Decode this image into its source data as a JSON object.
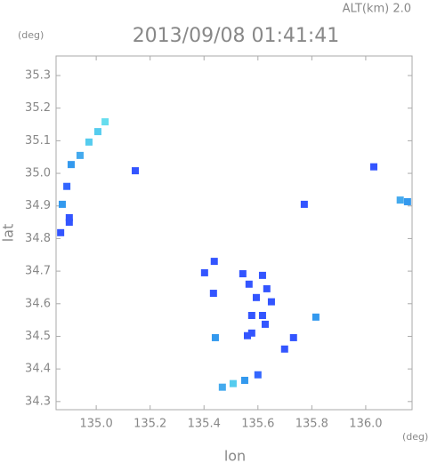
{
  "chart_data": {
    "type": "scatter",
    "title": "2013/09/08 01:41:41",
    "subtitle": "ALT(km) 2.0",
    "x_label": "lon",
    "y_label": "lat",
    "x_unit": "(deg)",
    "y_unit": "(deg)",
    "x": [
      134.907,
      134.94,
      134.973,
      135.006,
      135.033,
      134.874,
      134.891,
      134.9,
      134.868,
      134.9,
      135.145,
      136.03,
      136.128,
      136.155,
      135.772,
      135.438,
      135.402,
      135.435,
      135.544,
      135.617,
      135.567,
      135.633,
      135.594,
      135.65,
      135.577,
      135.617,
      135.627,
      135.577,
      135.561,
      135.732,
      135.699,
      135.815,
      135.442,
      135.468,
      135.508,
      135.551,
      135.6
    ],
    "y": [
      35.027,
      35.055,
      35.096,
      35.128,
      35.158,
      34.905,
      34.96,
      34.864,
      34.818,
      34.85,
      35.008,
      35.02,
      34.918,
      34.913,
      34.905,
      34.73,
      34.695,
      34.632,
      34.692,
      34.687,
      34.66,
      34.646,
      34.619,
      34.606,
      34.564,
      34.564,
      34.537,
      34.51,
      34.502,
      34.496,
      34.461,
      34.559,
      34.496,
      34.344,
      34.355,
      34.365,
      34.382
    ],
    "colors": [
      "#3399ee",
      "#44aaee",
      "#55ccee",
      "#55ccee",
      "#66ddee",
      "#3399ee",
      "#3366ff",
      "#3355ff",
      "#3355ff",
      "#3355ff",
      "#3355ff",
      "#3355ff",
      "#44aaee",
      "#3399ee",
      "#3355ff",
      "#3355ff",
      "#3355ff",
      "#3355ff",
      "#3355ff",
      "#3355ff",
      "#3355ff",
      "#3355ff",
      "#3355ff",
      "#3355ff",
      "#3355ff",
      "#3355ff",
      "#3355ff",
      "#3355ff",
      "#3355ff",
      "#3355ff",
      "#3355ff",
      "#3399ee",
      "#3399ee",
      "#44aaee",
      "#55ccee",
      "#3399ee",
      "#3366ff"
    ],
    "xlim": [
      134.851,
      136.172
    ],
    "ylim": [
      34.275,
      35.36
    ],
    "xticks": [
      {
        "value": 135,
        "label": "135.0"
      },
      135.2,
      135.4,
      135.6,
      135.8,
      {
        "value": 136,
        "label": "136.0"
      }
    ],
    "yticks": [
      34.3,
      34.4,
      34.5,
      34.6,
      34.7,
      34.8,
      34.9,
      {
        "value": 35,
        "label": "35.0"
      },
      35.1,
      35.2,
      35.3
    ]
  }
}
